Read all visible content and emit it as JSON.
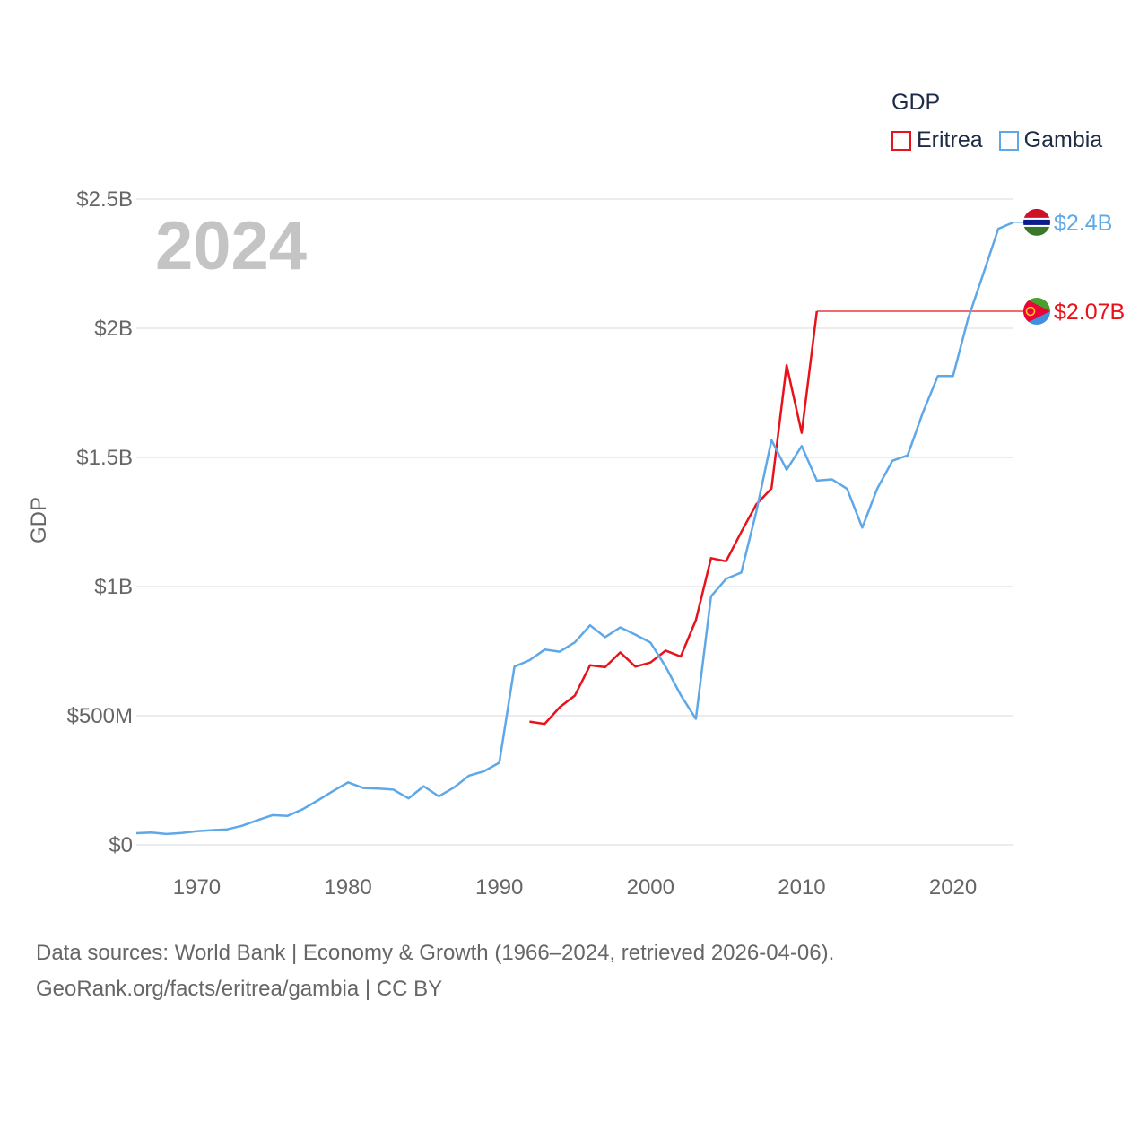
{
  "chart_data": {
    "type": "line",
    "ylabel": "GDP",
    "xlim": [
      1966,
      2024
    ],
    "ylim": [
      0,
      2500000000
    ],
    "x_ticks": [
      1970,
      1980,
      1990,
      2000,
      2010,
      2020
    ],
    "x_tick_labels": [
      "1970",
      "1980",
      "1990",
      "2000",
      "2010",
      "2020"
    ],
    "y_ticks": [
      0,
      500000000,
      1000000000,
      1500000000,
      2000000000,
      2500000000
    ],
    "y_tick_labels": [
      "$0",
      "$500M",
      "$1B",
      "$1.5B",
      "$2B",
      "$2.5B"
    ],
    "grid": true,
    "year_label": "2024",
    "legend": {
      "title": "GDP",
      "position": "top-right"
    },
    "series": [
      {
        "name": "Eritrea",
        "color": "#e8131a",
        "end_label": "$2.07B",
        "flag": "eritrea-flag",
        "points": [
          [
            1992,
            477
          ],
          [
            1993,
            468
          ],
          [
            1994,
            533
          ],
          [
            1995,
            578
          ],
          [
            1996,
            695
          ],
          [
            1997,
            688
          ],
          [
            1998,
            745
          ],
          [
            1999,
            690
          ],
          [
            2000,
            706
          ],
          [
            2001,
            752
          ],
          [
            2002,
            729
          ],
          [
            2003,
            870
          ],
          [
            2004,
            1110
          ],
          [
            2005,
            1098
          ],
          [
            2006,
            1211
          ],
          [
            2007,
            1318
          ],
          [
            2008,
            1380
          ],
          [
            2009,
            1857
          ],
          [
            2010,
            1595
          ],
          [
            2011,
            2066
          ],
          [
            2024,
            2066
          ]
        ]
      },
      {
        "name": "Gambia",
        "color": "#5ea8e8",
        "end_label": "$2.4B",
        "flag": "gambia-flag",
        "points": [
          [
            1966,
            45
          ],
          [
            1967,
            48
          ],
          [
            1968,
            42
          ],
          [
            1969,
            46
          ],
          [
            1970,
            53
          ],
          [
            1971,
            57
          ],
          [
            1972,
            60
          ],
          [
            1973,
            74
          ],
          [
            1974,
            95
          ],
          [
            1975,
            115
          ],
          [
            1976,
            112
          ],
          [
            1977,
            138
          ],
          [
            1978,
            172
          ],
          [
            1979,
            208
          ],
          [
            1980,
            242
          ],
          [
            1981,
            220
          ],
          [
            1982,
            218
          ],
          [
            1983,
            214
          ],
          [
            1984,
            180
          ],
          [
            1985,
            227
          ],
          [
            1986,
            188
          ],
          [
            1987,
            222
          ],
          [
            1988,
            268
          ],
          [
            1989,
            285
          ],
          [
            1990,
            318
          ],
          [
            1991,
            690
          ],
          [
            1992,
            715
          ],
          [
            1993,
            756
          ],
          [
            1994,
            748
          ],
          [
            1995,
            784
          ],
          [
            1996,
            850
          ],
          [
            1997,
            804
          ],
          [
            1998,
            842
          ],
          [
            1999,
            814
          ],
          [
            2000,
            783
          ],
          [
            2001,
            690
          ],
          [
            2002,
            580
          ],
          [
            2003,
            488
          ],
          [
            2004,
            962
          ],
          [
            2005,
            1030
          ],
          [
            2006,
            1054
          ],
          [
            2007,
            1290
          ],
          [
            2008,
            1567
          ],
          [
            2009,
            1452
          ],
          [
            2010,
            1544
          ],
          [
            2011,
            1410
          ],
          [
            2012,
            1415
          ],
          [
            2013,
            1378
          ],
          [
            2014,
            1228
          ],
          [
            2015,
            1380
          ],
          [
            2016,
            1487
          ],
          [
            2017,
            1508
          ],
          [
            2018,
            1672
          ],
          [
            2019,
            1815
          ],
          [
            2020,
            1815
          ],
          [
            2021,
            2037
          ],
          [
            2022,
            2210
          ],
          [
            2023,
            2385
          ],
          [
            2024,
            2410
          ]
        ]
      }
    ],
    "value_unit": "million USD"
  },
  "legend": {
    "title": "GDP",
    "items": [
      "Eritrea",
      "Gambia"
    ]
  },
  "source": {
    "line1": "Data sources: World Bank | Economy & Growth (1966–2024, retrieved 2026-04-06).",
    "line2": "GeoRank.org/facts/eritrea/gambia | CC BY"
  }
}
